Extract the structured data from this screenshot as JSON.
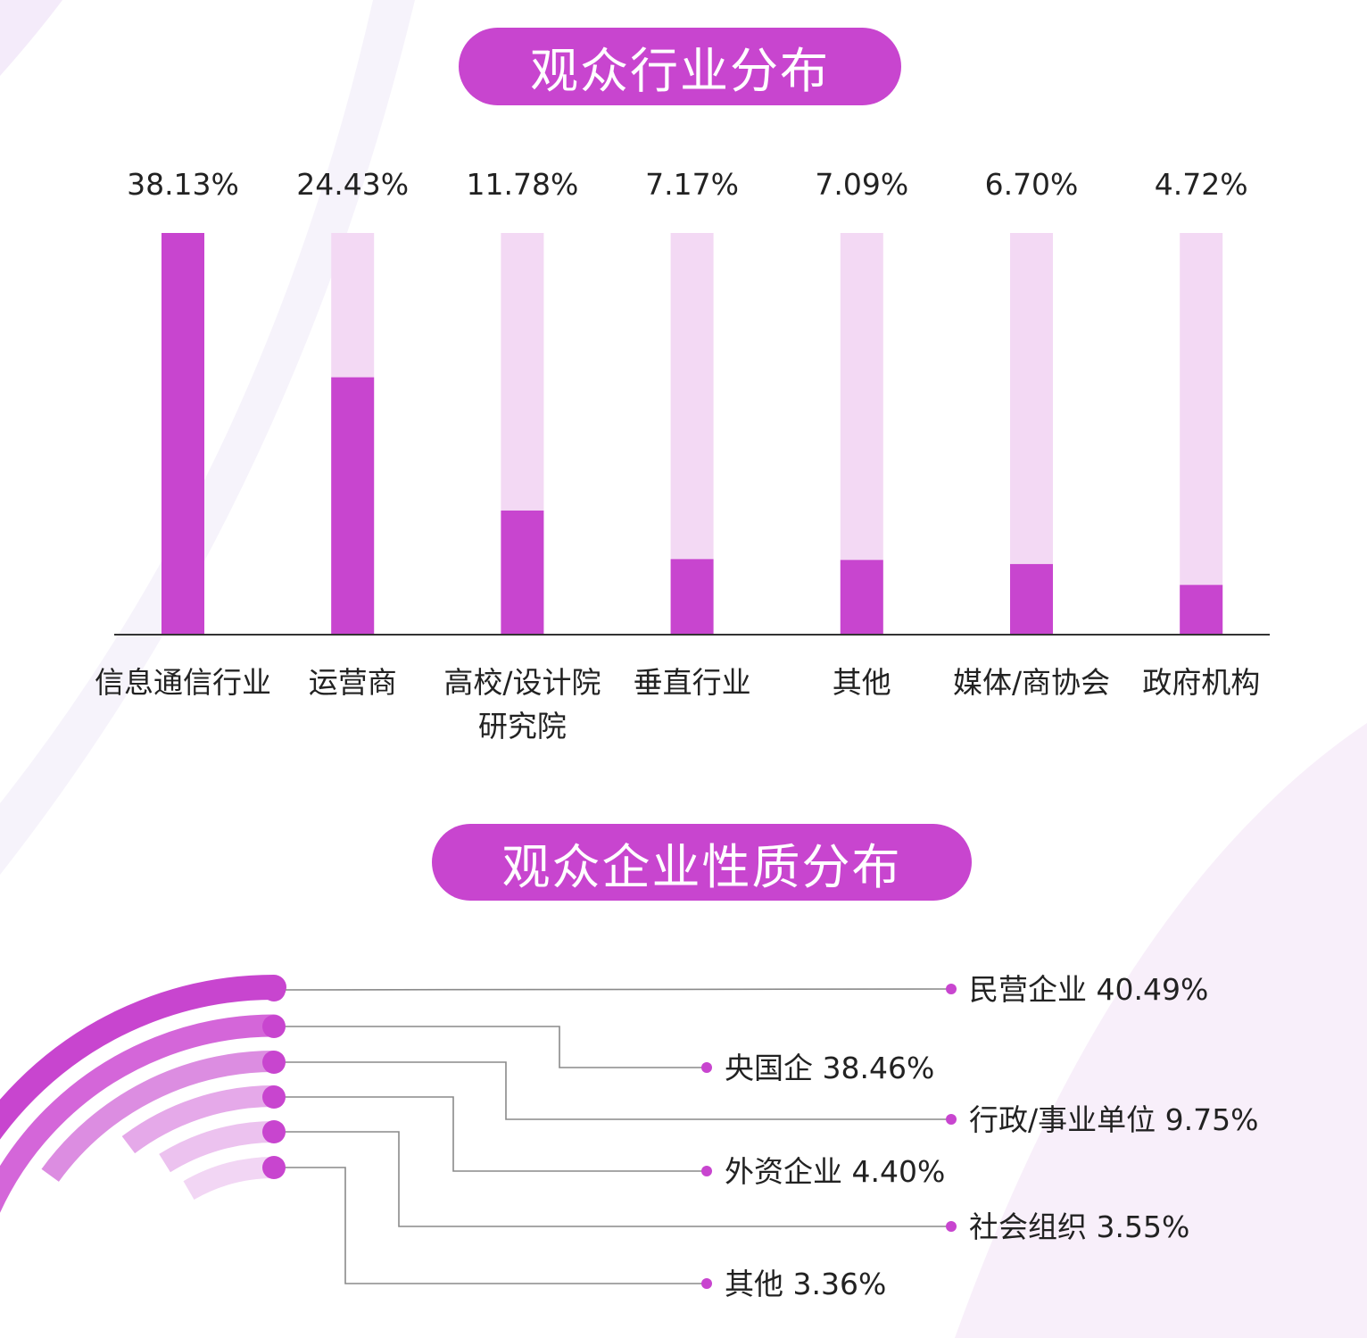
{
  "section1": {
    "title": "观众行业分布"
  },
  "section2": {
    "title": "观众企业性质分布"
  },
  "chart_data": [
    {
      "type": "bar",
      "categories": [
        "信息通信行业",
        "运营商",
        "高校/设计院\n研究院",
        "垂直行业",
        "其他",
        "媒体/商协会",
        "政府机构"
      ],
      "values": [
        38.13,
        24.43,
        11.78,
        7.17,
        7.09,
        6.7,
        4.72
      ],
      "value_labels": [
        "38.13%",
        "24.43%",
        "11.78%",
        "7.17%",
        "7.09%",
        "6.70%",
        "4.72%"
      ],
      "ylim": [
        0,
        38.13
      ],
      "colors": {
        "bar": "#c845cf",
        "track": "#f3d9f4",
        "axis": "#333333"
      }
    },
    {
      "type": "radial-bar",
      "labels": [
        "民营企业 40.49%",
        "央国企 38.46%",
        "行政/事业单位 9.75%",
        "外资企业 4.40%",
        "社会组织 3.55%",
        "其他 3.36%"
      ],
      "categories": [
        "民营企业",
        "央国企",
        "行政/事业单位",
        "外资企业",
        "社会组织",
        "其他"
      ],
      "values": [
        40.49,
        38.46,
        9.75,
        4.4,
        3.55,
        3.36
      ],
      "colors": [
        "#c845cf",
        "#d466d9",
        "#dc8de1",
        "#e5a9e9",
        "#ecc2ef",
        "#f2d6f4"
      ]
    }
  ]
}
